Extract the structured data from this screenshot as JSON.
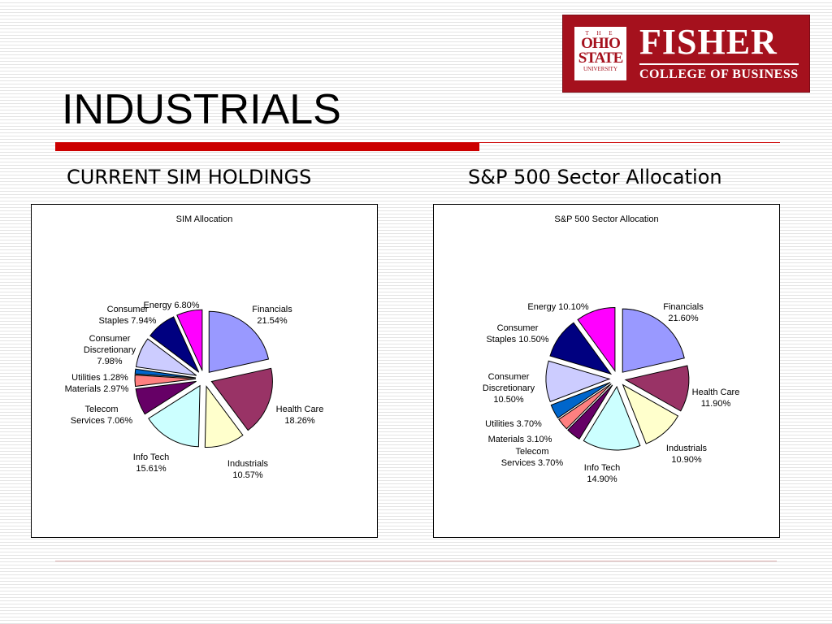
{
  "slide": {
    "title": "INDUSTRIALS",
    "left_heading": "CURRENT SIM HOLDINGS",
    "right_heading": "S&P 500 Sector Allocation"
  },
  "logo": {
    "seal_the": "T H E",
    "seal_ohio": "OHIO",
    "seal_state": "STATE",
    "seal_university": "UNIVERSITY",
    "word": "FISHER",
    "sub": "COLLEGE OF BUSINESS",
    "color": "#a5111d"
  },
  "chart_data": [
    {
      "type": "pie",
      "title": "SIM Allocation",
      "slices": [
        {
          "label": "Financials",
          "value": 21.54,
          "value_label": "21.54%",
          "color": "#9999ff"
        },
        {
          "label": "Health Care",
          "value": 18.26,
          "value_label": "18.26%",
          "color": "#993366"
        },
        {
          "label": "Industrials",
          "value": 10.57,
          "value_label": "10.57%",
          "color": "#ffffcc"
        },
        {
          "label": "Info Tech",
          "value": 15.61,
          "value_label": "15.61%",
          "color": "#ccffff"
        },
        {
          "label": "Telecom Services",
          "value": 7.06,
          "value_label": "7.06%",
          "color": "#660066"
        },
        {
          "label": "Materials",
          "value": 2.97,
          "value_label": "2.97%",
          "color": "#ff8080"
        },
        {
          "label": "Utilities",
          "value": 1.28,
          "value_label": "1.28%",
          "color": "#0066cc"
        },
        {
          "label": "Consumer Discretionary",
          "value": 7.98,
          "value_label": "7.98%",
          "color": "#ccccff"
        },
        {
          "label": "Consumer Staples",
          "value": 7.94,
          "value_label": "7.94%",
          "color": "#000080"
        },
        {
          "label": "Energy",
          "value": 6.8,
          "value_label": "6.80%",
          "color": "#ff00ff"
        }
      ]
    },
    {
      "type": "pie",
      "title": "S&P 500 Sector Allocation",
      "slices": [
        {
          "label": "Financials",
          "value": 21.6,
          "value_label": "21.60%",
          "color": "#9999ff"
        },
        {
          "label": "Health Care",
          "value": 11.9,
          "value_label": "11.90%",
          "color": "#993366"
        },
        {
          "label": "Industrials",
          "value": 10.9,
          "value_label": "10.90%",
          "color": "#ffffcc"
        },
        {
          "label": "Info Tech",
          "value": 14.9,
          "value_label": "14.90%",
          "color": "#ccffff"
        },
        {
          "label": "Telecom Services",
          "value": 3.7,
          "value_label": "3.70%",
          "color": "#660066"
        },
        {
          "label": "Materials",
          "value": 3.1,
          "value_label": "3.10%",
          "color": "#ff8080"
        },
        {
          "label": "Utilities",
          "value": 3.7,
          "value_label": "3.70%",
          "color": "#0066cc"
        },
        {
          "label": "Consumer Discretionary",
          "value": 10.5,
          "value_label": "10.50%",
          "color": "#ccccff"
        },
        {
          "label": "Consumer Staples",
          "value": 10.5,
          "value_label": "10.50%",
          "color": "#000080"
        },
        {
          "label": "Energy",
          "value": 10.1,
          "value_label": "10.10%",
          "color": "#ff00ff"
        }
      ]
    }
  ]
}
